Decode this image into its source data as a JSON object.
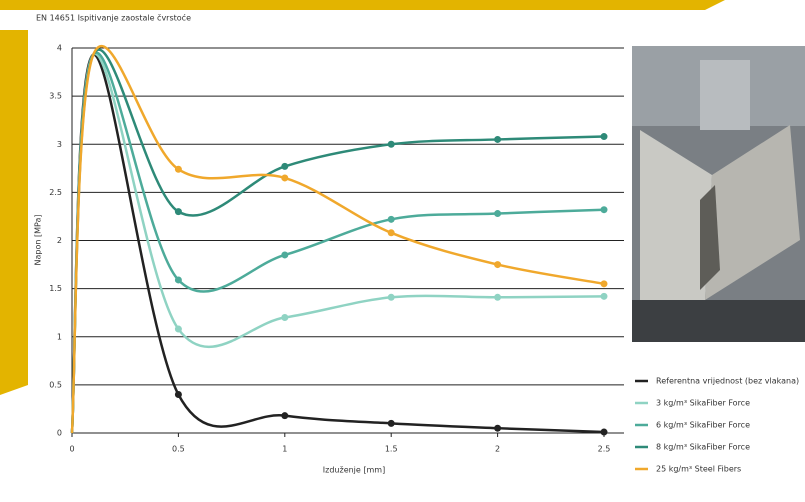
{
  "chart_data": {
    "type": "line",
    "title": "EN 14651 Ispitivanje zaostale čvrstoće",
    "x_label": "Izduženje [mm]",
    "y_label": "Napon [MPa]",
    "x": [
      0,
      0.1,
      0.5,
      1,
      1.5,
      2,
      2.5
    ],
    "series": [
      {
        "name": "Referentna vrijednost (bez vlakana)",
        "color": "#222222",
        "values": [
          0,
          3.93,
          0.4,
          0.18,
          0.1,
          0.05,
          0.01
        ]
      },
      {
        "name": "3 kg/m³ SikaFiber Force",
        "color": "#8fd3c3",
        "values": [
          0,
          3.93,
          1.08,
          1.2,
          1.41,
          1.41,
          1.42
        ]
      },
      {
        "name": "6 kg/m³ SikaFiber Force",
        "color": "#4dab9a",
        "values": [
          0,
          3.93,
          1.59,
          1.85,
          2.22,
          2.28,
          2.32
        ]
      },
      {
        "name": "8 kg/m³ SikaFiber Force",
        "color": "#2e8a78",
        "values": [
          0,
          3.93,
          2.3,
          2.77,
          3.0,
          3.05,
          3.08
        ]
      },
      {
        "name": "25 kg/m³ Steel Fibers",
        "color": "#f0a82c",
        "values": [
          0,
          3.93,
          2.74,
          2.65,
          2.08,
          1.75,
          1.55
        ]
      }
    ],
    "xlim": [
      0,
      2.5
    ],
    "xticks": [
      0,
      0.5,
      1,
      1.5,
      2,
      2.5
    ],
    "ylim": [
      0,
      4
    ],
    "yticks": [
      0,
      0.5,
      1,
      1.5,
      2,
      2.5,
      3,
      3.5,
      4
    ],
    "grid": true,
    "legend": "right"
  }
}
